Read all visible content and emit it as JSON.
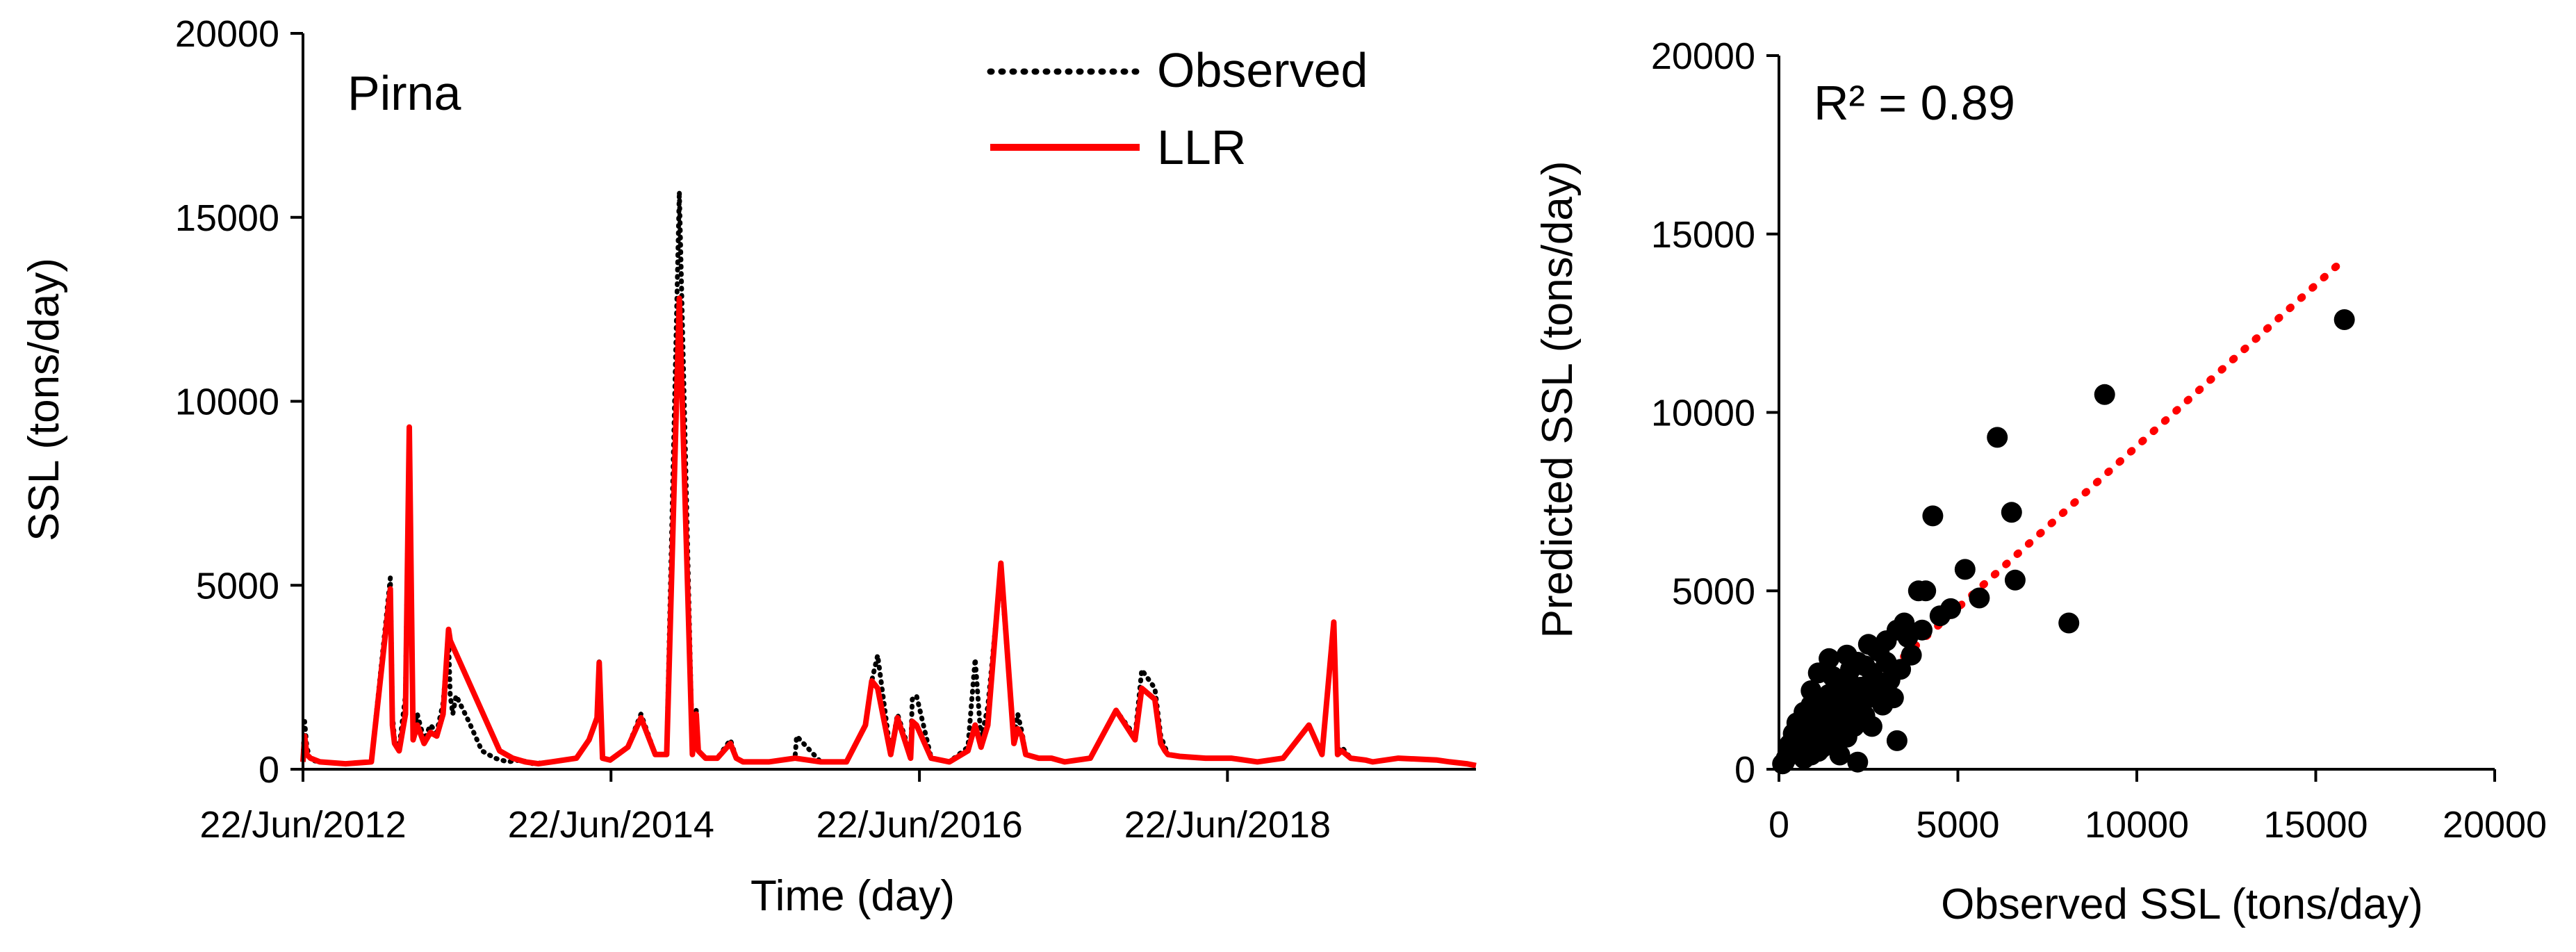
{
  "chart_data": [
    {
      "type": "line",
      "annotation": "Pirna",
      "xlabel": "Time (day)",
      "ylabel": "SSL (tons/day)",
      "ylim": [
        0,
        20000
      ],
      "yticks": [
        "0",
        "5000",
        "10000",
        "15000",
        "20000"
      ],
      "xlim": [
        "2012-06-22",
        "2020-02-01"
      ],
      "xticks": [
        {
          "date": "2012-06-22",
          "label": "22/Jun/2012"
        },
        {
          "date": "2014-06-22",
          "label": "22/Jun/2014"
        },
        {
          "date": "2016-06-22",
          "label": "22/Jun/2016"
        },
        {
          "date": "2018-06-22",
          "label": "22/Jun/2018"
        }
      ],
      "legend": {
        "position": "top-right"
      },
      "grid": false,
      "series": [
        {
          "name": "Observed",
          "style": "dotted",
          "color": "#000000",
          "x": [
            "2012-06-22",
            "2012-06-26",
            "2012-07-01",
            "2012-07-10",
            "2012-08-01",
            "2012-10-01",
            "2012-12-01",
            "2013-01-15",
            "2013-01-20",
            "2013-01-25",
            "2013-02-05",
            "2013-02-20",
            "2013-03-01",
            "2013-03-10",
            "2013-03-20",
            "2013-04-05",
            "2013-04-20",
            "2013-05-05",
            "2013-05-20",
            "2013-06-02",
            "2013-06-06",
            "2013-06-12",
            "2013-06-20",
            "2013-07-20",
            "2013-08-20",
            "2013-09-20",
            "2013-10-20",
            "2013-11-20",
            "2013-12-20",
            "2014-02-01",
            "2014-04-01",
            "2014-05-01",
            "2014-05-20",
            "2014-05-25",
            "2014-06-02",
            "2014-06-20",
            "2014-08-01",
            "2014-09-01",
            "2014-10-05",
            "2014-11-01",
            "2014-12-01",
            "2015-01-01",
            "2015-01-10",
            "2015-01-15",
            "2015-02-01",
            "2015-03-01",
            "2015-04-01",
            "2015-04-15",
            "2015-05-01",
            "2015-07-01",
            "2015-09-01",
            "2015-09-05",
            "2015-11-01",
            "2016-01-01",
            "2016-02-15",
            "2016-03-01",
            "2016-03-15",
            "2016-04-15",
            "2016-05-01",
            "2016-06-01",
            "2016-06-05",
            "2016-06-15",
            "2016-07-20",
            "2016-09-01",
            "2016-10-15",
            "2016-11-01",
            "2016-11-15",
            "2016-12-01",
            "2017-01-01",
            "2017-02-01",
            "2017-02-10",
            "2017-02-20",
            "2017-03-01",
            "2017-04-01",
            "2017-05-01",
            "2017-06-01",
            "2017-08-01",
            "2017-10-01",
            "2017-11-15",
            "2017-12-01",
            "2018-01-01",
            "2018-01-15",
            "2018-01-25",
            "2018-02-01",
            "2018-03-01",
            "2018-05-01",
            "2018-07-01",
            "2018-09-01",
            "2018-11-01",
            "2019-01-01",
            "2019-02-01",
            "2019-03-01",
            "2019-03-10",
            "2019-03-20",
            "2019-04-10",
            "2019-05-15",
            "2019-06-01",
            "2019-08-01",
            "2019-11-01",
            "2019-12-01",
            "2020-01-10",
            "2020-02-01"
          ],
          "y": [
            300,
            1300,
            600,
            250,
            200,
            150,
            200,
            5200,
            1500,
            800,
            600,
            2000,
            9300,
            1000,
            1500,
            800,
            1200,
            1000,
            1800,
            3500,
            2000,
            1500,
            2000,
            1300,
            500,
            300,
            200,
            250,
            150,
            200,
            300,
            800,
            1400,
            3000,
            300,
            250,
            600,
            1500,
            400,
            400,
            15700,
            400,
            1600,
            500,
            300,
            300,
            800,
            300,
            200,
            200,
            300,
            900,
            200,
            200,
            1200,
            2400,
            3100,
            400,
            1500,
            400,
            1900,
            2000,
            300,
            200,
            600,
            3000,
            800,
            1700,
            5400,
            800,
            1500,
            1000,
            400,
            300,
            300,
            200,
            300,
            1600,
            900,
            2700,
            2200,
            900,
            600,
            400,
            350,
            300,
            300,
            200,
            300,
            1200,
            400,
            4000,
            500,
            600,
            300,
            250,
            200,
            300,
            250,
            200,
            150,
            100
          ]
        },
        {
          "name": "LLR",
          "style": "solid",
          "color": "#ff0000",
          "x": [
            "2012-06-22",
            "2012-06-26",
            "2012-07-01",
            "2012-07-10",
            "2012-08-01",
            "2012-10-01",
            "2012-12-01",
            "2013-01-15",
            "2013-01-20",
            "2013-01-25",
            "2013-02-05",
            "2013-02-20",
            "2013-03-01",
            "2013-03-10",
            "2013-03-20",
            "2013-04-05",
            "2013-04-20",
            "2013-05-05",
            "2013-05-20",
            "2013-06-02",
            "2013-06-06",
            "2013-10-01",
            "2013-11-01",
            "2013-12-01",
            "2014-01-01",
            "2014-02-01",
            "2014-04-01",
            "2014-05-01",
            "2014-05-20",
            "2014-05-25",
            "2014-06-02",
            "2014-06-20",
            "2014-08-01",
            "2014-09-01",
            "2014-10-05",
            "2014-11-01",
            "2014-12-01",
            "2015-01-01",
            "2015-01-10",
            "2015-01-15",
            "2015-02-01",
            "2015-03-01",
            "2015-04-01",
            "2015-04-15",
            "2015-05-01",
            "2015-07-01",
            "2015-09-01",
            "2015-11-01",
            "2016-01-01",
            "2016-02-15",
            "2016-03-01",
            "2016-03-15",
            "2016-04-15",
            "2016-05-01",
            "2016-06-01",
            "2016-06-05",
            "2016-06-15",
            "2016-07-20",
            "2016-09-01",
            "2016-10-15",
            "2016-11-01",
            "2016-11-15",
            "2016-12-01",
            "2017-01-01",
            "2017-02-01",
            "2017-02-10",
            "2017-02-20",
            "2017-03-01",
            "2017-04-01",
            "2017-05-01",
            "2017-06-01",
            "2017-08-01",
            "2017-10-01",
            "2017-11-15",
            "2017-12-01",
            "2018-01-01",
            "2018-01-15",
            "2018-01-25",
            "2018-02-01",
            "2018-03-01",
            "2018-05-01",
            "2018-07-01",
            "2018-09-01",
            "2018-11-01",
            "2019-01-01",
            "2019-02-01",
            "2019-03-01",
            "2019-03-10",
            "2019-03-20",
            "2019-04-10",
            "2019-05-15",
            "2019-06-01",
            "2019-08-01",
            "2019-11-01",
            "2019-12-01",
            "2020-01-10",
            "2020-02-01"
          ],
          "y": [
            200,
            900,
            400,
            300,
            200,
            150,
            200,
            4900,
            1200,
            700,
            500,
            1500,
            9300,
            800,
            1200,
            700,
            1000,
            900,
            1500,
            3800,
            3500,
            500,
            300,
            200,
            150,
            200,
            300,
            800,
            1400,
            2900,
            300,
            250,
            600,
            1400,
            400,
            400,
            12800,
            400,
            1500,
            500,
            300,
            300,
            700,
            300,
            200,
            200,
            300,
            200,
            200,
            1200,
            2400,
            2200,
            400,
            1400,
            300,
            1300,
            1200,
            300,
            200,
            500,
            1200,
            600,
            1200,
            5600,
            700,
            1100,
            900,
            400,
            300,
            300,
            200,
            300,
            1600,
            800,
            2200,
            1900,
            700,
            500,
            400,
            350,
            300,
            300,
            200,
            300,
            1200,
            400,
            4000,
            400,
            500,
            300,
            250,
            200,
            300,
            250,
            200,
            150,
            100
          ]
        }
      ]
    },
    {
      "type": "scatter",
      "annotation": "R² = 0.89",
      "xlabel": "Observed SSL (tons/day)",
      "ylabel": "Predicted SSL (tons/day)",
      "xlim": [
        0,
        20000
      ],
      "ylim": [
        0,
        20000
      ],
      "xticks": [
        "0",
        "5000",
        "10000",
        "15000",
        "20000"
      ],
      "yticks": [
        "0",
        "5000",
        "10000",
        "15000",
        "20000"
      ],
      "grid": false,
      "marker_color": "#000000",
      "trendline": {
        "style": "dotted",
        "color": "#ff0000",
        "x": [
          0,
          15800
        ],
        "y": [
          0,
          14300
        ]
      },
      "points": [
        [
          15800,
          12600
        ],
        [
          9100,
          10500
        ],
        [
          6100,
          9300
        ],
        [
          6500,
          7200
        ],
        [
          4300,
          7100
        ],
        [
          5200,
          5600
        ],
        [
          6600,
          5300
        ],
        [
          5600,
          4800
        ],
        [
          8100,
          4100
        ],
        [
          4100,
          5000
        ],
        [
          3900,
          5000
        ],
        [
          4800,
          4500
        ],
        [
          4500,
          4300
        ],
        [
          3600,
          3700
        ],
        [
          3300,
          3900
        ],
        [
          3000,
          3600
        ],
        [
          2700,
          3400
        ],
        [
          2500,
          3500
        ],
        [
          2200,
          3000
        ],
        [
          2000,
          2800
        ],
        [
          1900,
          3200
        ],
        [
          1800,
          2500
        ],
        [
          1600,
          2300
        ],
        [
          1500,
          2600
        ],
        [
          1400,
          2100
        ],
        [
          1200,
          1900
        ],
        [
          1100,
          1700
        ],
        [
          1000,
          1400
        ],
        [
          900,
          1800
        ],
        [
          800,
          1200
        ],
        [
          700,
          1100
        ],
        [
          600,
          900
        ],
        [
          500,
          800
        ],
        [
          400,
          600
        ],
        [
          300,
          400
        ],
        [
          200,
          300
        ],
        [
          150,
          200
        ],
        [
          100,
          150
        ],
        [
          2800,
          2200
        ],
        [
          2500,
          2000
        ],
        [
          2200,
          1600
        ],
        [
          1900,
          1400
        ],
        [
          1700,
          1100
        ],
        [
          1500,
          900
        ],
        [
          1300,
          700
        ],
        [
          1100,
          500
        ],
        [
          900,
          400
        ],
        [
          700,
          300
        ],
        [
          3400,
          2800
        ],
        [
          3100,
          2500
        ],
        [
          2600,
          2700
        ],
        [
          2300,
          2300
        ],
        [
          2100,
          1900
        ],
        [
          1800,
          1700
        ],
        [
          1600,
          1500
        ],
        [
          1300,
          1300
        ],
        [
          1200,
          1000
        ],
        [
          1000,
          800
        ],
        [
          800,
          600
        ],
        [
          600,
          500
        ],
        [
          3300,
          800
        ],
        [
          2200,
          200
        ],
        [
          1700,
          400
        ],
        [
          2600,
          1200
        ],
        [
          1400,
          3100
        ],
        [
          1100,
          2700
        ],
        [
          900,
          2200
        ],
        [
          700,
          1600
        ],
        [
          500,
          1300
        ],
        [
          400,
          1000
        ],
        [
          300,
          700
        ],
        [
          250,
          500
        ],
        [
          3000,
          3000
        ],
        [
          2800,
          3300
        ],
        [
          2400,
          2900
        ],
        [
          2000,
          2400
        ],
        [
          1800,
          2100
        ],
        [
          1500,
          1800
        ],
        [
          3700,
          3200
        ],
        [
          4000,
          3900
        ],
        [
          3500,
          4100
        ],
        [
          2900,
          1800
        ],
        [
          2400,
          1500
        ],
        [
          3200,
          2000
        ],
        [
          1900,
          900
        ],
        [
          2700,
          2500
        ],
        [
          2100,
          1200
        ],
        [
          1200,
          600
        ],
        [
          800,
          1500
        ],
        [
          600,
          1200
        ]
      ]
    }
  ]
}
